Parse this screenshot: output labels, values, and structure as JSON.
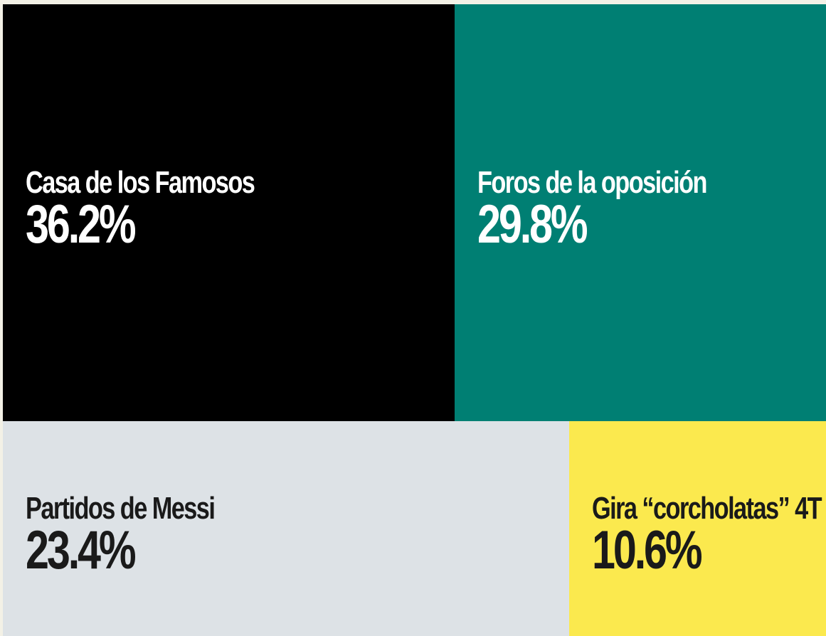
{
  "chart_data": {
    "type": "treemap",
    "title": "",
    "unit": "%",
    "categories": [
      "Casa de los Famosos",
      "Foros de la oposición",
      "Partidos de Messi",
      "Gira “corcholatas” 4T"
    ],
    "values": [
      36.2,
      29.8,
      23.4,
      10.6
    ],
    "value_labels": [
      "36.2%",
      "29.8%",
      "23.4%",
      "10.6%"
    ],
    "colors": [
      "#000000",
      "#007f73",
      "#dde2e6",
      "#fbe94e"
    ],
    "text_colors": [
      "#ffffff",
      "#ffffff",
      "#1a1a1a",
      "#1a1a1a"
    ]
  }
}
